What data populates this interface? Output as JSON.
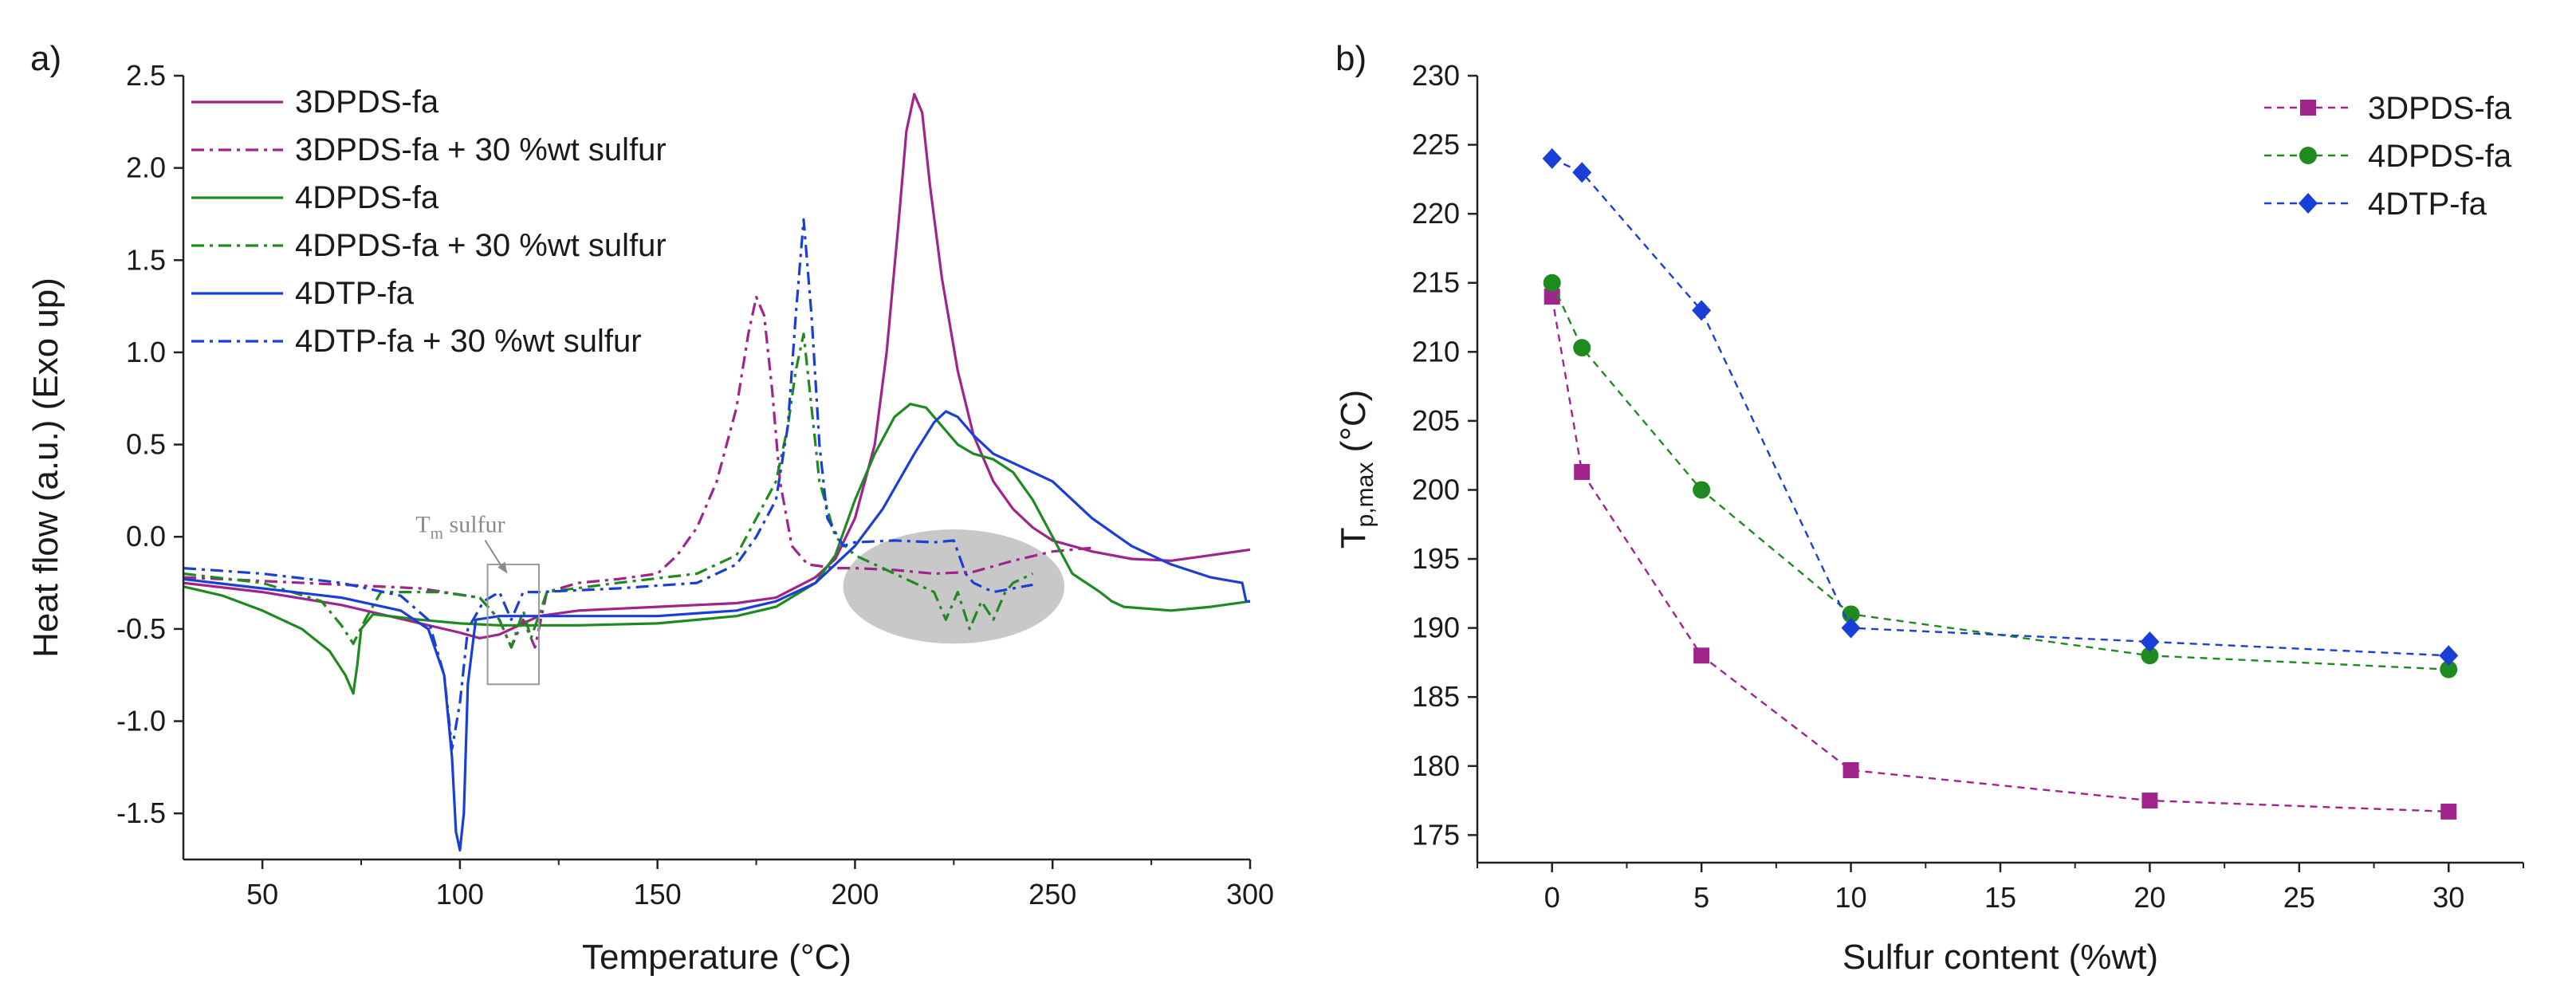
{
  "figure": {
    "panel_a_label": "a)",
    "panel_b_label": "b)"
  },
  "chart_data": [
    {
      "type": "line",
      "panel": "a)",
      "title": "",
      "xlabel": "Temperature (°C)",
      "ylabel": "Heat flow (a.u.) (Exo up)",
      "xlim": [
        30,
        300
      ],
      "ylim": [
        -1.75,
        2.5
      ],
      "xticks": [
        50,
        100,
        150,
        200,
        250,
        300
      ],
      "yticks": [
        2.5,
        2.0,
        1.5,
        1.0,
        0.5,
        0.0,
        -0.5,
        -1.0,
        -1.5
      ],
      "ytick_labels": [
        "2.5",
        "2.0",
        "1.5",
        "1.0",
        "0.5",
        "0.0",
        "-0.5",
        "-1.0",
        "-1.5"
      ],
      "legend_position": "top-left",
      "annotation": {
        "text": "T",
        "sub": "m",
        "rest": " sulfur",
        "target_x": 112,
        "target_y": -0.2
      },
      "highlight_box": {
        "x": [
          107,
          120
        ],
        "y": [
          -0.8,
          -0.15
        ]
      },
      "highlight_ellipse": {
        "center": [
          225,
          -0.27
        ],
        "radii": [
          28,
          0.31
        ]
      },
      "series": [
        {
          "name": "3DPDS-fa",
          "color": "#a0248c",
          "dash": "solid",
          "points": [
            [
              30,
              -0.25
            ],
            [
              50,
              -0.3
            ],
            [
              70,
              -0.37
            ],
            [
              90,
              -0.47
            ],
            [
              100,
              -0.52
            ],
            [
              105,
              -0.55
            ],
            [
              110,
              -0.53
            ],
            [
              115,
              -0.48
            ],
            [
              120,
              -0.43
            ],
            [
              130,
              -0.4
            ],
            [
              150,
              -0.38
            ],
            [
              170,
              -0.36
            ],
            [
              180,
              -0.33
            ],
            [
              190,
              -0.22
            ],
            [
              195,
              -0.12
            ],
            [
              200,
              0.1
            ],
            [
              205,
              0.5
            ],
            [
              208,
              1.0
            ],
            [
              211,
              1.7
            ],
            [
              213,
              2.2
            ],
            [
              215,
              2.4
            ],
            [
              217,
              2.3
            ],
            [
              219,
              1.9
            ],
            [
              222,
              1.4
            ],
            [
              226,
              0.9
            ],
            [
              230,
              0.55
            ],
            [
              235,
              0.3
            ],
            [
              240,
              0.15
            ],
            [
              245,
              0.05
            ],
            [
              250,
              -0.02
            ],
            [
              260,
              -0.08
            ],
            [
              270,
              -0.12
            ],
            [
              280,
              -0.13
            ],
            [
              290,
              -0.1
            ],
            [
              300,
              -0.07
            ]
          ]
        },
        {
          "name": "3DPDS-fa + 30 %wt sulfur",
          "color": "#a0248c",
          "dash": "dashdot",
          "points": [
            [
              30,
              -0.22
            ],
            [
              50,
              -0.24
            ],
            [
              70,
              -0.26
            ],
            [
              90,
              -0.28
            ],
            [
              105,
              -0.33
            ],
            [
              110,
              -0.45
            ],
            [
              113,
              -0.6
            ],
            [
              116,
              -0.45
            ],
            [
              119,
              -0.6
            ],
            [
              122,
              -0.3
            ],
            [
              130,
              -0.25
            ],
            [
              140,
              -0.23
            ],
            [
              150,
              -0.2
            ],
            [
              155,
              -0.1
            ],
            [
              160,
              0.05
            ],
            [
              165,
              0.3
            ],
            [
              170,
              0.7
            ],
            [
              173,
              1.1
            ],
            [
              175,
              1.3
            ],
            [
              177,
              1.2
            ],
            [
              179,
              0.8
            ],
            [
              181,
              0.3
            ],
            [
              184,
              -0.05
            ],
            [
              188,
              -0.15
            ],
            [
              195,
              -0.17
            ],
            [
              200,
              -0.17
            ],
            [
              210,
              -0.18
            ],
            [
              220,
              -0.2
            ],
            [
              230,
              -0.19
            ],
            [
              240,
              -0.13
            ],
            [
              250,
              -0.08
            ],
            [
              260,
              -0.06
            ]
          ]
        },
        {
          "name": "4DPDS-fa",
          "color": "#1f8a1f",
          "dash": "solid",
          "points": [
            [
              30,
              -0.27
            ],
            [
              40,
              -0.32
            ],
            [
              50,
              -0.4
            ],
            [
              60,
              -0.5
            ],
            [
              67,
              -0.62
            ],
            [
              71,
              -0.75
            ],
            [
              73,
              -0.85
            ],
            [
              74,
              -0.7
            ],
            [
              75,
              -0.5
            ],
            [
              78,
              -0.42
            ],
            [
              90,
              -0.45
            ],
            [
              100,
              -0.47
            ],
            [
              110,
              -0.48
            ],
            [
              130,
              -0.48
            ],
            [
              150,
              -0.47
            ],
            [
              170,
              -0.43
            ],
            [
              180,
              -0.38
            ],
            [
              190,
              -0.25
            ],
            [
              195,
              -0.1
            ],
            [
              200,
              0.2
            ],
            [
              205,
              0.45
            ],
            [
              210,
              0.65
            ],
            [
              214,
              0.72
            ],
            [
              218,
              0.7
            ],
            [
              222,
              0.6
            ],
            [
              226,
              0.5
            ],
            [
              230,
              0.45
            ],
            [
              235,
              0.42
            ],
            [
              240,
              0.35
            ],
            [
              245,
              0.2
            ],
            [
              250,
              0.0
            ],
            [
              255,
              -0.2
            ],
            [
              262,
              -0.3
            ],
            [
              265,
              -0.35
            ],
            [
              268,
              -0.38
            ],
            [
              280,
              -0.4
            ],
            [
              290,
              -0.38
            ],
            [
              300,
              -0.35
            ]
          ]
        },
        {
          "name": "4DPDS-fa + 30 %wt sulfur",
          "color": "#1f8a1f",
          "dash": "dashdot",
          "points": [
            [
              30,
              -0.2
            ],
            [
              50,
              -0.25
            ],
            [
              65,
              -0.35
            ],
            [
              70,
              -0.48
            ],
            [
              73,
              -0.58
            ],
            [
              76,
              -0.45
            ],
            [
              80,
              -0.3
            ],
            [
              95,
              -0.3
            ],
            [
              105,
              -0.33
            ],
            [
              110,
              -0.45
            ],
            [
              113,
              -0.6
            ],
            [
              116,
              -0.4
            ],
            [
              118,
              -0.55
            ],
            [
              122,
              -0.3
            ],
            [
              140,
              -0.25
            ],
            [
              160,
              -0.2
            ],
            [
              170,
              -0.1
            ],
            [
              175,
              0.1
            ],
            [
              180,
              0.3
            ],
            [
              183,
              0.6
            ],
            [
              185,
              0.9
            ],
            [
              187,
              1.1
            ],
            [
              189,
              0.7
            ],
            [
              191,
              0.3
            ],
            [
              195,
              0.0
            ],
            [
              200,
              -0.1
            ],
            [
              205,
              -0.15
            ],
            [
              210,
              -0.2
            ],
            [
              215,
              -0.25
            ],
            [
              220,
              -0.3
            ],
            [
              223,
              -0.45
            ],
            [
              226,
              -0.3
            ],
            [
              229,
              -0.5
            ],
            [
              232,
              -0.35
            ],
            [
              235,
              -0.45
            ],
            [
              238,
              -0.3
            ],
            [
              240,
              -0.25
            ],
            [
              245,
              -0.2
            ]
          ]
        },
        {
          "name": "4DTP-fa",
          "color": "#1a3fd6",
          "dash": "solid",
          "points": [
            [
              30,
              -0.23
            ],
            [
              50,
              -0.28
            ],
            [
              70,
              -0.33
            ],
            [
              85,
              -0.4
            ],
            [
              92,
              -0.5
            ],
            [
              96,
              -0.75
            ],
            [
              98,
              -1.2
            ],
            [
              99,
              -1.6
            ],
            [
              100,
              -1.7
            ],
            [
              101,
              -1.5
            ],
            [
              102,
              -0.8
            ],
            [
              104,
              -0.45
            ],
            [
              110,
              -0.43
            ],
            [
              130,
              -0.43
            ],
            [
              150,
              -0.43
            ],
            [
              170,
              -0.4
            ],
            [
              180,
              -0.35
            ],
            [
              190,
              -0.25
            ],
            [
              200,
              -0.05
            ],
            [
              207,
              0.15
            ],
            [
              215,
              0.45
            ],
            [
              220,
              0.62
            ],
            [
              223,
              0.68
            ],
            [
              226,
              0.65
            ],
            [
              230,
              0.55
            ],
            [
              235,
              0.45
            ],
            [
              240,
              0.4
            ],
            [
              250,
              0.3
            ],
            [
              260,
              0.1
            ],
            [
              270,
              -0.05
            ],
            [
              280,
              -0.15
            ],
            [
              290,
              -0.22
            ],
            [
              298,
              -0.25
            ],
            [
              299,
              -0.35
            ],
            [
              300,
              -0.35
            ]
          ]
        },
        {
          "name": "4DTP-fa + 30 %wt sulfur",
          "color": "#1a3fd6",
          "dash": "dashdot",
          "points": [
            [
              30,
              -0.17
            ],
            [
              50,
              -0.2
            ],
            [
              70,
              -0.25
            ],
            [
              85,
              -0.32
            ],
            [
              92,
              -0.45
            ],
            [
              96,
              -0.75
            ],
            [
              98,
              -1.15
            ],
            [
              100,
              -0.9
            ],
            [
              102,
              -0.5
            ],
            [
              106,
              -0.35
            ],
            [
              110,
              -0.3
            ],
            [
              113,
              -0.45
            ],
            [
              116,
              -0.3
            ],
            [
              120,
              -0.3
            ],
            [
              140,
              -0.28
            ],
            [
              160,
              -0.25
            ],
            [
              170,
              -0.15
            ],
            [
              175,
              0.0
            ],
            [
              180,
              0.2
            ],
            [
              183,
              0.6
            ],
            [
              185,
              1.2
            ],
            [
              187,
              1.72
            ],
            [
              189,
              1.2
            ],
            [
              191,
              0.5
            ],
            [
              193,
              0.1
            ],
            [
              197,
              -0.05
            ],
            [
              200,
              -0.03
            ],
            [
              210,
              -0.02
            ],
            [
              220,
              -0.03
            ],
            [
              225,
              -0.02
            ],
            [
              228,
              -0.2
            ],
            [
              230,
              -0.25
            ],
            [
              235,
              -0.3
            ],
            [
              240,
              -0.28
            ],
            [
              245,
              -0.26
            ]
          ]
        }
      ]
    },
    {
      "type": "line",
      "panel": "b)",
      "title": "",
      "xlabel": "Sulfur content (%wt)",
      "ylabel_main": "T",
      "ylabel_sub": "p,max",
      "ylabel_unit": " (°C)",
      "xlim": [
        -2.5,
        32.5
      ],
      "ylim": [
        173,
        230
      ],
      "xticks": [
        0,
        5,
        10,
        15,
        20,
        25,
        30
      ],
      "yticks": [
        175,
        180,
        185,
        190,
        195,
        200,
        205,
        210,
        215,
        220,
        225,
        230
      ],
      "legend_position": "top-right",
      "x": [
        0,
        1,
        5,
        10,
        20,
        30
      ],
      "series": [
        {
          "name": "3DPDS-fa",
          "color": "#a0248c",
          "marker": "square",
          "values": [
            214.0,
            201.3,
            188.0,
            179.7,
            177.5,
            176.7
          ]
        },
        {
          "name": "4DPDS-fa",
          "color": "#1f8a1f",
          "marker": "circle",
          "values": [
            215.0,
            210.3,
            200.0,
            191.0,
            188.0,
            187.0
          ]
        },
        {
          "name": "4DTP-fa",
          "color": "#1a3fd6",
          "marker": "diamond",
          "values": [
            224.0,
            223.0,
            213.0,
            190.0,
            189.0,
            188.0
          ]
        }
      ]
    }
  ]
}
